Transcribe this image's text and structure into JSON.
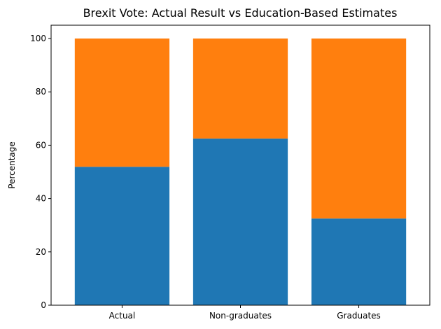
{
  "chart_data": {
    "type": "bar",
    "stacked": true,
    "title": "Brexit Vote: Actual Result vs Education-Based Estimates",
    "xlabel": "",
    "ylabel": "Percentage",
    "categories": [
      "Actual",
      "Non-graduates",
      "Graduates"
    ],
    "ylim": [
      0,
      105
    ],
    "yticks": [
      0,
      20,
      40,
      60,
      80,
      100
    ],
    "grid": false,
    "legend": "none",
    "series": [
      {
        "values": [
          51.9,
          62.5,
          32.5
        ],
        "color": "#1f77b4"
      },
      {
        "values": [
          48.1,
          37.5,
          67.5
        ],
        "color": "#ff7f0e"
      }
    ]
  }
}
